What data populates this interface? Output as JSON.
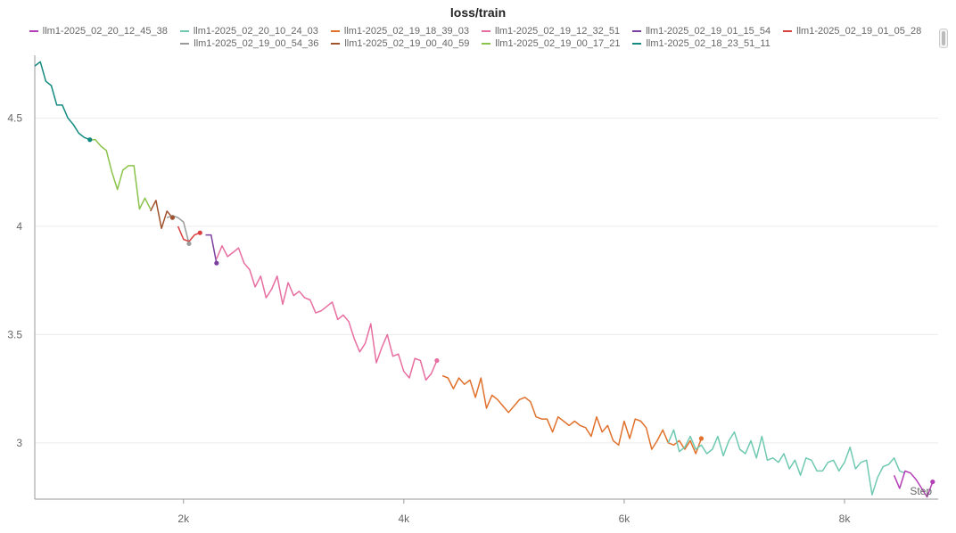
{
  "chart_data": {
    "type": "line",
    "title": "loss/train",
    "xlabel": "Step",
    "ylabel": "",
    "xlim": [
      650,
      8850
    ],
    "ylim": [
      2.74,
      4.79
    ],
    "x_ticks": [
      {
        "v": 2000,
        "label": "2k"
      },
      {
        "v": 4000,
        "label": "4k"
      },
      {
        "v": 6000,
        "label": "6k"
      },
      {
        "v": 8000,
        "label": "8k"
      }
    ],
    "y_ticks": [
      {
        "v": 3,
        "label": "3"
      },
      {
        "v": 3.5,
        "label": "3.5"
      },
      {
        "v": 4,
        "label": "4"
      },
      {
        "v": 4.5,
        "label": "4.5"
      }
    ],
    "grid": true,
    "legend_position": "top",
    "series": [
      {
        "name": "llm1-2025_02_20_12_45_38",
        "color": "#b33db6",
        "x": [
          8450,
          8500,
          8550,
          8600,
          8650,
          8700,
          8750,
          8800
        ],
        "y": [
          2.85,
          2.79,
          2.87,
          2.86,
          2.83,
          2.79,
          2.75,
          2.82
        ]
      },
      {
        "name": "llm1-2025_02_20_10_24_03",
        "color": "#6fc9b1",
        "x": [
          6400,
          6450,
          6500,
          6550,
          6600,
          6650,
          6700,
          6750,
          6800,
          6850,
          6900,
          6950,
          7000,
          7050,
          7100,
          7150,
          7200,
          7250,
          7300,
          7350,
          7400,
          7450,
          7500,
          7550,
          7600,
          7650,
          7700,
          7750,
          7800,
          7850,
          7900,
          7950,
          8000,
          8050,
          8100,
          8150,
          8200,
          8250,
          8300,
          8350,
          8400,
          8450,
          8500,
          8550
        ],
        "y": [
          3.0,
          3.06,
          2.96,
          2.98,
          3.03,
          2.97,
          2.99,
          2.95,
          2.97,
          3.03,
          2.94,
          3.01,
          3.05,
          2.97,
          2.95,
          3.01,
          2.93,
          3.03,
          2.92,
          2.93,
          2.91,
          2.95,
          2.88,
          2.92,
          2.85,
          2.93,
          2.92,
          2.87,
          2.87,
          2.91,
          2.92,
          2.87,
          2.91,
          2.98,
          2.88,
          2.91,
          2.92,
          2.76,
          2.84,
          2.89,
          2.9,
          2.93,
          2.87,
          2.86
        ]
      },
      {
        "name": "llm1-2025_02_19_18_39_03",
        "color": "#e0712b",
        "x": [
          4350,
          4400,
          4450,
          4500,
          4550,
          4600,
          4650,
          4700,
          4750,
          4800,
          4850,
          4900,
          4950,
          5000,
          5050,
          5100,
          5150,
          5200,
          5250,
          5300,
          5350,
          5400,
          5450,
          5500,
          5550,
          5600,
          5650,
          5700,
          5750,
          5800,
          5850,
          5900,
          5950,
          6000,
          6050,
          6100,
          6150,
          6200,
          6250,
          6300,
          6350,
          6400,
          6450,
          6500,
          6550,
          6600,
          6650,
          6700
        ],
        "y": [
          3.31,
          3.3,
          3.25,
          3.3,
          3.27,
          3.29,
          3.21,
          3.3,
          3.16,
          3.22,
          3.2,
          3.17,
          3.14,
          3.17,
          3.2,
          3.21,
          3.19,
          3.12,
          3.11,
          3.11,
          3.05,
          3.12,
          3.1,
          3.08,
          3.1,
          3.08,
          3.07,
          3.03,
          3.12,
          3.05,
          3.08,
          3.01,
          2.99,
          3.1,
          3.02,
          3.11,
          3.1,
          3.07,
          2.97,
          3.01,
          3.06,
          3.0,
          2.99,
          3.01,
          2.97,
          3.01,
          2.95,
          3.02
        ]
      },
      {
        "name": "llm1-2025_02_19_12_32_51",
        "color": "#e76ea0",
        "x": [
          2300,
          2350,
          2400,
          2450,
          2500,
          2550,
          2600,
          2650,
          2700,
          2750,
          2800,
          2850,
          2900,
          2950,
          3000,
          3050,
          3100,
          3150,
          3200,
          3250,
          3300,
          3350,
          3400,
          3450,
          3500,
          3550,
          3600,
          3650,
          3700,
          3750,
          3800,
          3850,
          3900,
          3950,
          4000,
          4050,
          4100,
          4150,
          4200,
          4250,
          4300
        ],
        "y": [
          3.85,
          3.91,
          3.86,
          3.88,
          3.9,
          3.83,
          3.8,
          3.72,
          3.77,
          3.67,
          3.71,
          3.77,
          3.64,
          3.74,
          3.68,
          3.7,
          3.67,
          3.66,
          3.6,
          3.61,
          3.63,
          3.65,
          3.57,
          3.59,
          3.56,
          3.48,
          3.42,
          3.46,
          3.55,
          3.37,
          3.44,
          3.5,
          3.4,
          3.41,
          3.33,
          3.3,
          3.39,
          3.38,
          3.29,
          3.32,
          3.38
        ]
      },
      {
        "name": "llm1-2025_02_19_01_15_54",
        "color": "#7b3fa0",
        "x": [
          2200,
          2250,
          2300
        ],
        "y": [
          3.96,
          3.96,
          3.83
        ]
      },
      {
        "name": "llm1-2025_02_19_01_05_28",
        "color": "#d94040",
        "x": [
          1950,
          2000,
          2050,
          2100,
          2150
        ],
        "y": [
          4.0,
          3.94,
          3.93,
          3.96,
          3.97
        ]
      },
      {
        "name": "llm1-2025_02_19_00_54_36",
        "color": "#9a9a9a",
        "x": [
          1850,
          1900,
          1950,
          2000,
          2050
        ],
        "y": [
          4.04,
          4.05,
          4.04,
          4.02,
          3.92
        ]
      },
      {
        "name": "llm1-2025_02_19_00_40_59",
        "color": "#a0522d",
        "x": [
          1700,
          1750,
          1800,
          1850,
          1900
        ],
        "y": [
          4.07,
          4.12,
          3.99,
          4.07,
          4.04
        ]
      },
      {
        "name": "llm1-2025_02_19_00_17_21",
        "color": "#8bc34a",
        "x": [
          1150,
          1200,
          1250,
          1300,
          1350,
          1400,
          1450,
          1500,
          1550,
          1600,
          1650,
          1700
        ],
        "y": [
          4.4,
          4.4,
          4.37,
          4.35,
          4.25,
          4.17,
          4.26,
          4.28,
          4.28,
          4.08,
          4.13,
          4.08
        ]
      },
      {
        "name": "llm1-2025_02_18_23_51_11",
        "color": "#138a80",
        "x": [
          650,
          700,
          750,
          800,
          850,
          900,
          950,
          1000,
          1050,
          1100,
          1150
        ],
        "y": [
          4.74,
          4.76,
          4.67,
          4.65,
          4.56,
          4.56,
          4.5,
          4.47,
          4.43,
          4.41,
          4.4
        ]
      }
    ],
    "end_markers": [
      {
        "series": "llm1-2025_02_20_12_45_38",
        "x": 8800,
        "y": 2.82
      },
      {
        "series": "llm1-2025_02_19_18_39_03",
        "x": 6700,
        "y": 3.02
      },
      {
        "series": "llm1-2025_02_19_12_32_51",
        "x": 4300,
        "y": 3.38
      },
      {
        "series": "llm1-2025_02_19_01_15_54",
        "x": 2300,
        "y": 3.83
      },
      {
        "series": "llm1-2025_02_19_01_05_28",
        "x": 2150,
        "y": 3.97
      },
      {
        "series": "llm1-2025_02_19_00_54_36",
        "x": 2050,
        "y": 3.92
      },
      {
        "series": "llm1-2025_02_19_00_40_59",
        "x": 1900,
        "y": 4.04
      },
      {
        "series": "llm1-2025_02_18_23_51_11",
        "x": 1150,
        "y": 4.4
      }
    ]
  }
}
